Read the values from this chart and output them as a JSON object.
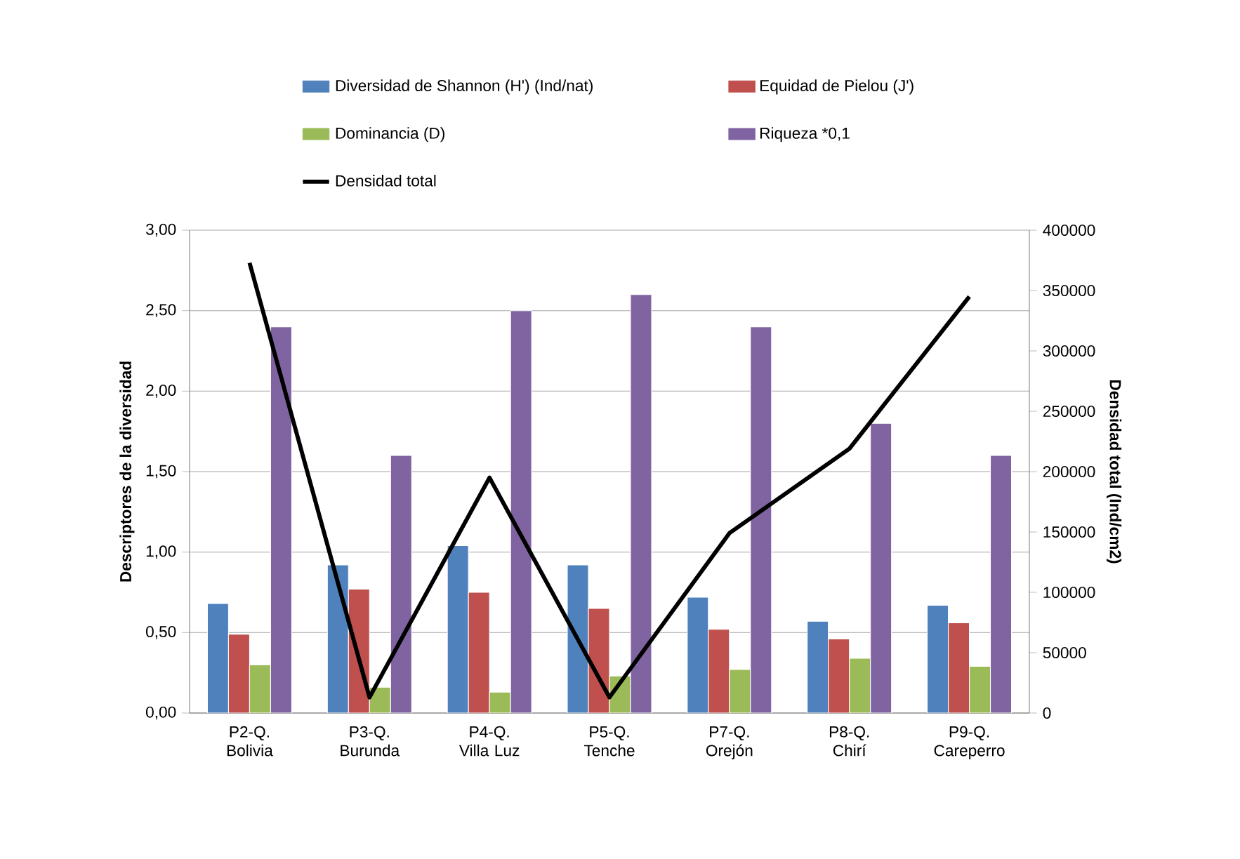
{
  "chart_data": {
    "type": "bar",
    "categories": [
      "P2-Q. Bolivia",
      "P3-Q. Burunda",
      "P4-Q. Villa Luz",
      "P5-Q. Tenche",
      "P7-Q. Orejón",
      "P8-Q. Chirí",
      "P9-Q. Careperro"
    ],
    "series": [
      {
        "name": "Diversidad de Shannon (H') (Ind/nat)",
        "color": "#4f81bd",
        "values": [
          0.68,
          0.92,
          1.04,
          0.92,
          0.72,
          0.57,
          0.67
        ]
      },
      {
        "name": "Equidad de Pielou (J')",
        "color": "#c0504d",
        "values": [
          0.49,
          0.77,
          0.75,
          0.65,
          0.52,
          0.46,
          0.56
        ]
      },
      {
        "name": "Dominancia (D)",
        "color": "#9bbb59",
        "values": [
          0.3,
          0.16,
          0.13,
          0.23,
          0.27,
          0.34,
          0.29
        ]
      },
      {
        "name": "Riqueza *0,1",
        "color": "#8064a2",
        "values": [
          2.4,
          1.6,
          2.5,
          2.6,
          2.4,
          1.8,
          1.6
        ]
      },
      {
        "name": "Densidad total",
        "color": "#000000",
        "type": "line",
        "axis": "y2",
        "marker": "none",
        "values": [
          373000,
          13000,
          195000,
          13000,
          149000,
          219000,
          345000
        ]
      }
    ],
    "ylabel": "Descriptores de la diversidad",
    "y2label": "Densidad total (Ind/cm2)",
    "ylim": [
      0,
      3
    ],
    "yticks": [
      {
        "value": 0,
        "label": "0,00"
      },
      {
        "value": 0.5,
        "label": "0,50"
      },
      {
        "value": 1,
        "label": "1,00"
      },
      {
        "value": 1.5,
        "label": "1,50"
      },
      {
        "value": 2,
        "label": "2,00"
      },
      {
        "value": 2.5,
        "label": "2,50"
      },
      {
        "value": 3,
        "label": "3,00"
      }
    ],
    "y2lim": [
      0,
      400000
    ],
    "y2ticks": [
      0,
      50000,
      100000,
      150000,
      200000,
      250000,
      300000,
      350000,
      400000
    ],
    "grid": "y",
    "legend": "top"
  }
}
